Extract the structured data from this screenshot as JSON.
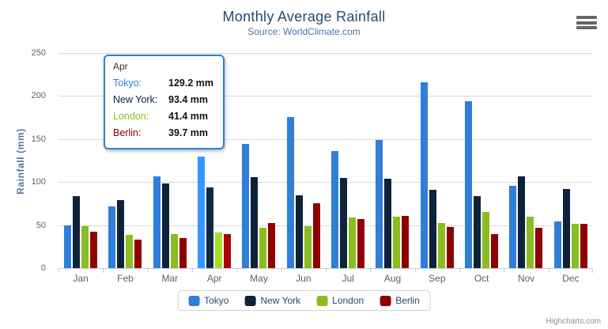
{
  "chart": {
    "title": "Monthly Average Rainfall",
    "subtitle": "Source: WorldClimate.com",
    "credits": "Highcharts.com",
    "export_icon": "hamburger-menu-icon"
  },
  "chart_data": {
    "type": "bar",
    "title": "Monthly Average Rainfall",
    "subtitle": "Source: WorldClimate.com",
    "categories": [
      "Jan",
      "Feb",
      "Mar",
      "Apr",
      "May",
      "Jun",
      "Jul",
      "Aug",
      "Sep",
      "Oct",
      "Nov",
      "Dec"
    ],
    "series": [
      {
        "name": "Tokyo",
        "color": "#2f7ed8",
        "values": [
          49.9,
          71.5,
          106.4,
          129.2,
          144.0,
          176.0,
          135.6,
          148.5,
          216.4,
          194.1,
          95.6,
          54.4
        ]
      },
      {
        "name": "New York",
        "color": "#0d233a",
        "values": [
          83.6,
          78.8,
          98.5,
          93.4,
          106.0,
          84.5,
          105.0,
          104.3,
          91.2,
          83.5,
          106.6,
          92.3
        ]
      },
      {
        "name": "London",
        "color": "#8bbc21",
        "values": [
          48.9,
          38.8,
          39.3,
          41.4,
          47.0,
          48.3,
          59.0,
          59.6,
          52.4,
          65.2,
          59.3,
          51.2
        ]
      },
      {
        "name": "Berlin",
        "color": "#910000",
        "values": [
          42.4,
          33.2,
          34.5,
          39.7,
          52.6,
          75.5,
          57.4,
          60.4,
          47.6,
          39.1,
          46.8,
          51.1
        ]
      }
    ],
    "xlabel": "",
    "ylabel": "Rainfall (mm)",
    "ylim": [
      0,
      250
    ],
    "yticks": [
      0,
      50,
      100,
      150,
      200,
      250
    ],
    "unit": "mm",
    "grid": true,
    "legend_position": "bottom",
    "hovered_category": "Apr",
    "tooltip": {
      "header": "Apr",
      "rows": [
        {
          "label": "Tokyo:",
          "value": "129.2 mm",
          "color": "#2f7ed8"
        },
        {
          "label": "New York:",
          "value": "93.4 mm",
          "color": "#0d233a"
        },
        {
          "label": "London:",
          "value": "41.4 mm",
          "color": "#8bbc21"
        },
        {
          "label": "Berlin:",
          "value": "39.7 mm",
          "color": "#910000"
        }
      ]
    }
  }
}
